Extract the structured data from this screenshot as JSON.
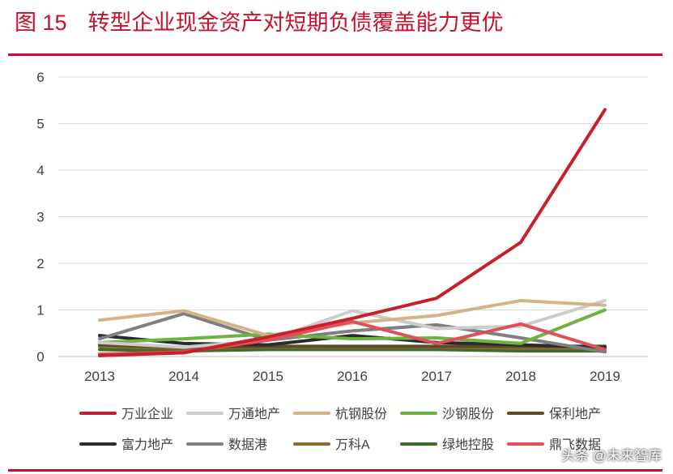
{
  "figure": {
    "number": "图 15",
    "title": "转型企业现金资产对短期负债覆盖能力更优"
  },
  "watermark": "头条 @未来智库",
  "chart_data": {
    "type": "line",
    "x": [
      "2013",
      "2014",
      "2015",
      "2016",
      "2017",
      "2018",
      "2019"
    ],
    "ylim": [
      0,
      6
    ],
    "yticks": [
      "0",
      "1",
      "2",
      "3",
      "4",
      "5",
      "6"
    ],
    "grid": true,
    "legend_position": "bottom",
    "series": [
      {
        "name": "万业企业",
        "color": "#c8202a",
        "values": [
          0.02,
          0.08,
          0.42,
          0.82,
          1.25,
          2.45,
          5.3
        ]
      },
      {
        "name": "万通地产",
        "color": "#cccccc",
        "values": [
          0.3,
          0.2,
          0.35,
          0.98,
          0.6,
          0.65,
          1.2
        ]
      },
      {
        "name": "杭钢股份",
        "color": "#d2b48c",
        "values": [
          0.78,
          0.98,
          0.45,
          0.72,
          0.88,
          1.2,
          1.1
        ]
      },
      {
        "name": "沙钢股份",
        "color": "#6cb33f",
        "values": [
          0.3,
          0.38,
          0.48,
          0.38,
          0.4,
          0.28,
          1.0
        ]
      },
      {
        "name": "保利地产",
        "color": "#5c4b28",
        "values": [
          0.25,
          0.2,
          0.22,
          0.22,
          0.22,
          0.22,
          0.22
        ]
      },
      {
        "name": "富力地产",
        "color": "#2b2b2b",
        "values": [
          0.45,
          0.28,
          0.25,
          0.45,
          0.3,
          0.25,
          0.2
        ]
      },
      {
        "name": "数据港",
        "color": "#7f7f7f",
        "values": [
          0.38,
          0.92,
          0.35,
          0.55,
          0.68,
          0.4,
          0.1
        ]
      },
      {
        "name": "万科A",
        "color": "#8b6b30",
        "values": [
          0.22,
          0.18,
          0.2,
          0.2,
          0.2,
          0.18,
          0.18
        ]
      },
      {
        "name": "绿地控股",
        "color": "#3e6b2a",
        "values": [
          0.15,
          0.12,
          0.15,
          0.15,
          0.15,
          0.12,
          0.12
        ]
      },
      {
        "name": "鼎飞数据",
        "color": "#e0505a",
        "values": [
          0.05,
          0.1,
          0.35,
          0.75,
          0.28,
          0.7,
          0.15
        ]
      }
    ]
  }
}
